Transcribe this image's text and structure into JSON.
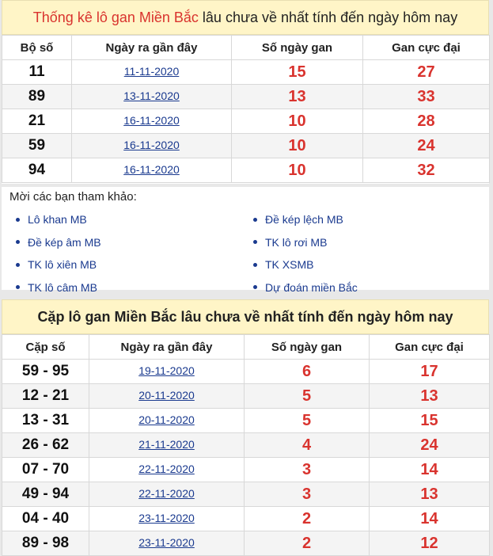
{
  "section1": {
    "title_red": "Thống kê lô gan Miền Bắc",
    "title_rest": " lâu chưa về nhất tính đến ngày hôm nay",
    "headers": [
      "Bộ số",
      "Ngày ra gần đây",
      "Số ngày gan",
      "Gan cực đại"
    ],
    "rows": [
      {
        "num": "11",
        "date": "11-11-2020",
        "days": "15",
        "max": "27"
      },
      {
        "num": "89",
        "date": "13-11-2020",
        "days": "13",
        "max": "33"
      },
      {
        "num": "21",
        "date": "16-11-2020",
        "days": "10",
        "max": "28"
      },
      {
        "num": "59",
        "date": "16-11-2020",
        "days": "10",
        "max": "24"
      },
      {
        "num": "94",
        "date": "16-11-2020",
        "days": "10",
        "max": "32"
      }
    ]
  },
  "links": {
    "heading": "Mời các bạn tham khảo:",
    "items": [
      "Lô khan MB",
      "Đề kép lệch MB",
      "Đề kép âm MB",
      "TK lô rơi MB",
      "TK lô xiên MB",
      "TK XSMB",
      "TK lô câm MB",
      "Dự đoán miền Bắc"
    ]
  },
  "section2": {
    "title": "Cặp lô gan Miền Bắc lâu chưa về nhất tính đến ngày hôm nay",
    "headers": [
      "Cặp số",
      "Ngày ra gần đây",
      "Số ngày gan",
      "Gan cực đại"
    ],
    "rows": [
      {
        "num": "59 - 95",
        "date": "19-11-2020",
        "days": "6",
        "max": "17"
      },
      {
        "num": "12 - 21",
        "date": "20-11-2020",
        "days": "5",
        "max": "13"
      },
      {
        "num": "13 - 31",
        "date": "20-11-2020",
        "days": "5",
        "max": "15"
      },
      {
        "num": "26 - 62",
        "date": "21-11-2020",
        "days": "4",
        "max": "24"
      },
      {
        "num": "07 - 70",
        "date": "22-11-2020",
        "days": "3",
        "max": "14"
      },
      {
        "num": "49 - 94",
        "date": "22-11-2020",
        "days": "3",
        "max": "13"
      },
      {
        "num": "04 - 40",
        "date": "23-11-2020",
        "days": "2",
        "max": "14"
      },
      {
        "num": "89 - 98",
        "date": "23-11-2020",
        "days": "2",
        "max": "12"
      }
    ]
  }
}
